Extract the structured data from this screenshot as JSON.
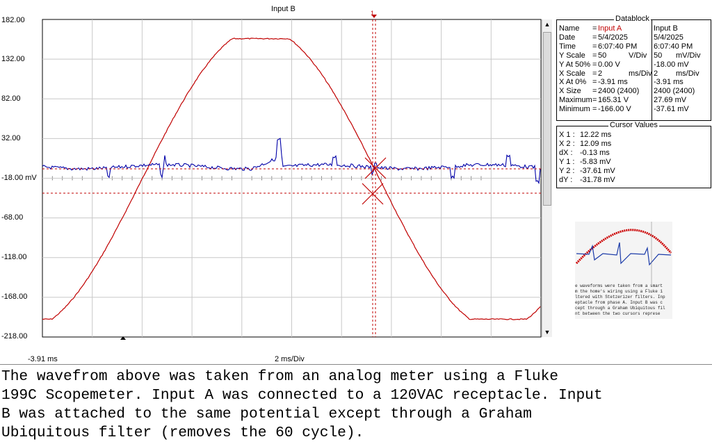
{
  "plot": {
    "title": "Input B",
    "y_labels": [
      "182.00",
      "132.00",
      "82.00",
      "32.00",
      "-18.00 mV",
      "-68.00",
      "-118.00",
      "-168.00",
      "-218.00"
    ],
    "x_start_label": "-3.91 ms",
    "x_scale_label": "2 ms/Div",
    "cursor_marker": "1",
    "colors": {
      "input_a": "#c00000",
      "input_b": "#0000a8",
      "cursor": "#c00000",
      "grid": "#c8c8c8"
    }
  },
  "datablock": {
    "title": "Datablock",
    "rows_a": [
      {
        "label": "Name",
        "eq": "=",
        "value": "Input A"
      },
      {
        "label": "Date",
        "eq": "=",
        "value": "5/4/2025"
      },
      {
        "label": "Time",
        "eq": "=",
        "value": "6:07:40 PM"
      },
      {
        "label": "Y Scale",
        "eq": "=",
        "value": "50",
        "unit": "V/Div"
      },
      {
        "label": "Y At 50%",
        "eq": "=",
        "value": "0.00 V"
      },
      {
        "label": "X Scale",
        "eq": "=",
        "value": "2",
        "unit": "ms/Div"
      },
      {
        "label": "X At 0%",
        "eq": "=",
        "value": "-3.91 ms"
      },
      {
        "label": "X Size",
        "eq": "=",
        "value": "2400 (2400)"
      },
      {
        "label": "Maximum",
        "eq": "=",
        "value": "165.31 V"
      },
      {
        "label": "Minimum",
        "eq": "=",
        "value": "-166.00 V"
      }
    ],
    "rows_b": [
      {
        "value": "Input B"
      },
      {
        "value": "5/4/2025"
      },
      {
        "value": "6:07:40 PM"
      },
      {
        "value": "50",
        "unit": "mV/Div"
      },
      {
        "value": "-18.00 mV"
      },
      {
        "value": "2",
        "unit": "ms/Div"
      },
      {
        "value": "-3.91 ms"
      },
      {
        "value": "2400 (2400)"
      },
      {
        "value": "27.69 mV"
      },
      {
        "value": "-37.61 mV"
      }
    ]
  },
  "cursor_values": {
    "title": "Cursor Values",
    "rows": [
      {
        "label": "X 1 :",
        "value": "12.22 ms"
      },
      {
        "label": "X 2 :",
        "value": "12.09 ms"
      },
      {
        "label": "dX :",
        "value": "-0.13 ms"
      },
      {
        "label": "Y 1 :",
        "value": "-5.83 mV"
      },
      {
        "label": "Y 2 :",
        "value": "-37.61 mV"
      },
      {
        "label": "dY :",
        "value": "-31.78 mV"
      }
    ]
  },
  "thumbnail": {
    "lines": [
      "e waveforms were taken from a smart",
      "m the home's wiring using a Fluke 1",
      "ltered with Stetzerizer filters. Inp",
      "eptacle from phase A. Input B was c",
      "cept through a Graham Ubiquitous fil",
      "nt between the two cursors represe"
    ]
  },
  "caption": {
    "text": "The wavefrom above was taken from an analog meter using a Fluke\n199C Scopemeter. Input A was connected to a 120VAC receptacle. Input\nB was attached to the same potential except through a Graham\nUbiquitous filter (removes the 60 cycle)."
  }
}
